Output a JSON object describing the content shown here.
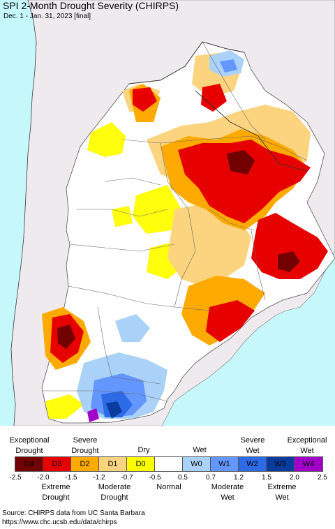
{
  "title": "SPI 2-Month Drought Severity (CHIRPS)",
  "subtitle": "Dec. 1 - Jan. 31, 2023 [final]",
  "colors": {
    "ocean": "#c6f8fb",
    "outside_land": "#efeaee",
    "border": "#555555"
  },
  "legend": {
    "swatches": [
      {
        "code": "D4",
        "color": "#730000"
      },
      {
        "code": "D3",
        "color": "#e60000"
      },
      {
        "code": "D2",
        "color": "#ffaa00"
      },
      {
        "code": "D1",
        "color": "#fcd37f"
      },
      {
        "code": "D0",
        "color": "#ffff00"
      },
      {
        "code": "",
        "color": "#ffffff"
      },
      {
        "code": "W0",
        "color": "#aad2f8"
      },
      {
        "code": "W1",
        "color": "#6496ff"
      },
      {
        "code": "W2",
        "color": "#2d6ae6"
      },
      {
        "code": "W3",
        "color": "#0a3ca0"
      },
      {
        "code": "W4",
        "color": "#a000c8"
      }
    ],
    "top_labels": [
      {
        "text": "Exceptional\nDrought"
      },
      {
        "text": "Severe\nDrought"
      },
      {
        "text": "Dry"
      },
      {
        "text": "Wet"
      },
      {
        "text": "Severe\nWet"
      },
      {
        "text": "Exceptional\nWet"
      }
    ],
    "ticks": [
      "-2.5",
      "-2.0",
      "-1.5",
      "-1.2",
      "-0.7",
      "-0.5",
      "0.5",
      "0.7",
      "1.2",
      "1.5",
      "2.0",
      "2.5"
    ],
    "bottom_labels": [
      {
        "text": "Extreme\nDrought"
      },
      {
        "text": "Moderate\nDrought"
      },
      {
        "text": "Normal"
      },
      {
        "text": "Moderate\nWet"
      },
      {
        "text": "Extreme\nWet"
      }
    ]
  },
  "source_line1": "Source: CHIRPS data from UC Santa Barbara",
  "source_line2": "https://www.chc.ucsb.edu/data/chirps"
}
